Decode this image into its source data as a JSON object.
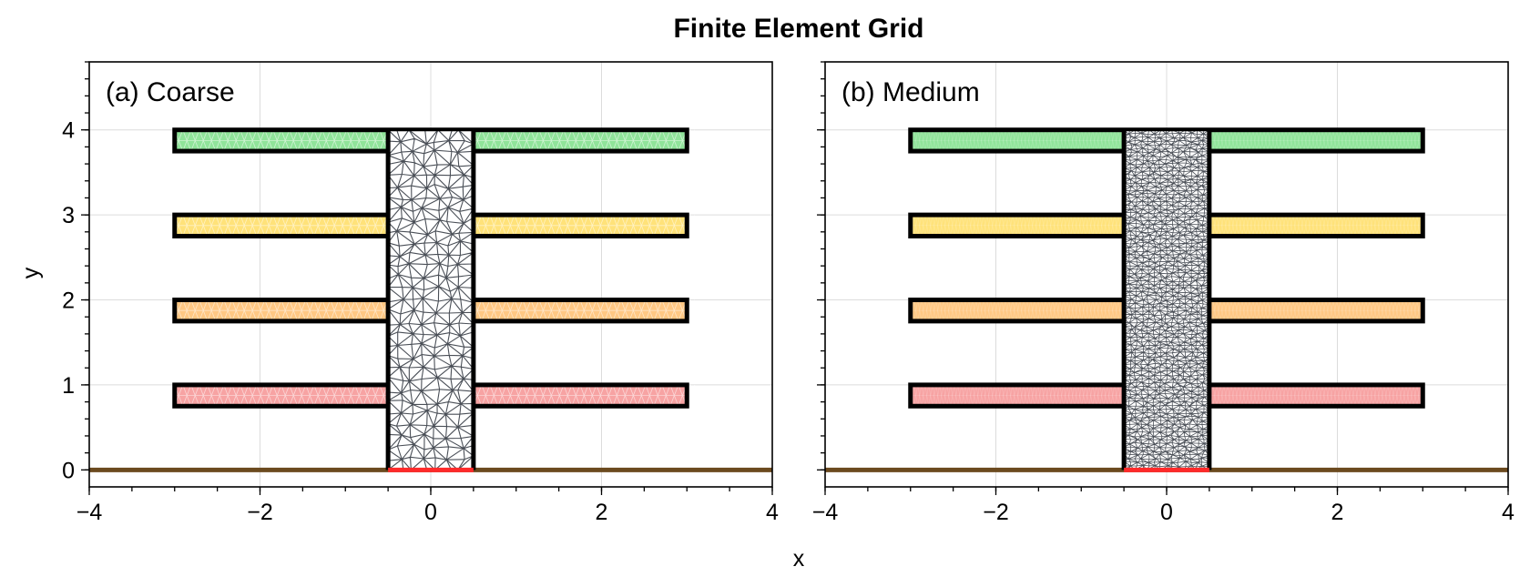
{
  "title": "Finite Element Grid",
  "xlabel": "x",
  "ylabel": "y",
  "colors": {
    "floor_color": "#6b4a1f",
    "base_color": "#ff2a2a",
    "column_color": "#4a4f57",
    "floor_fills": [
      "#f7a3a3",
      "#ffc884",
      "#ffe27a",
      "#90e49a"
    ],
    "grid": "#dcdcdc"
  },
  "chart_data": [
    {
      "type": "mesh",
      "panel_label": "(a) Coarse",
      "mesh_density": "coarse",
      "xlim": [
        -4,
        4
      ],
      "ylim": [
        -0.2,
        4.8
      ],
      "xticks": [
        -4,
        -2,
        0,
        2,
        4
      ],
      "yticks": [
        0,
        1,
        2,
        3,
        4
      ],
      "xtick_labels": [
        "−4",
        "−2",
        "0",
        "2",
        "4"
      ],
      "ytick_labels": [
        "0",
        "1",
        "2",
        "3",
        "4"
      ],
      "ground_y": 0,
      "column": {
        "x": [
          -0.5,
          0.5
        ],
        "y": [
          0,
          4
        ]
      },
      "floors": [
        {
          "y": [
            0.75,
            1.0
          ],
          "x": [
            -3,
            3
          ]
        },
        {
          "y": [
            1.75,
            2.0
          ],
          "x": [
            -3,
            3
          ]
        },
        {
          "y": [
            2.75,
            3.0
          ],
          "x": [
            -3,
            3
          ]
        },
        {
          "y": [
            3.75,
            4.0
          ],
          "x": [
            -3,
            3
          ]
        }
      ]
    },
    {
      "type": "mesh",
      "panel_label": "(b) Medium",
      "mesh_density": "medium",
      "xlim": [
        -4,
        4
      ],
      "ylim": [
        -0.2,
        4.8
      ],
      "xticks": [
        -4,
        -2,
        0,
        2,
        4
      ],
      "yticks": [
        0,
        1,
        2,
        3,
        4
      ],
      "xtick_labels": [
        "−4",
        "−2",
        "0",
        "2",
        "4"
      ],
      "ytick_labels": [
        "",
        "",
        "",
        "",
        ""
      ],
      "ground_y": 0,
      "column": {
        "x": [
          -0.5,
          0.5
        ],
        "y": [
          0,
          4
        ]
      },
      "floors": [
        {
          "y": [
            0.75,
            1.0
          ],
          "x": [
            -3,
            3
          ]
        },
        {
          "y": [
            1.75,
            2.0
          ],
          "x": [
            -3,
            3
          ]
        },
        {
          "y": [
            2.75,
            3.0
          ],
          "x": [
            -3,
            3
          ]
        },
        {
          "y": [
            3.75,
            4.0
          ],
          "x": [
            -3,
            3
          ]
        }
      ]
    }
  ]
}
